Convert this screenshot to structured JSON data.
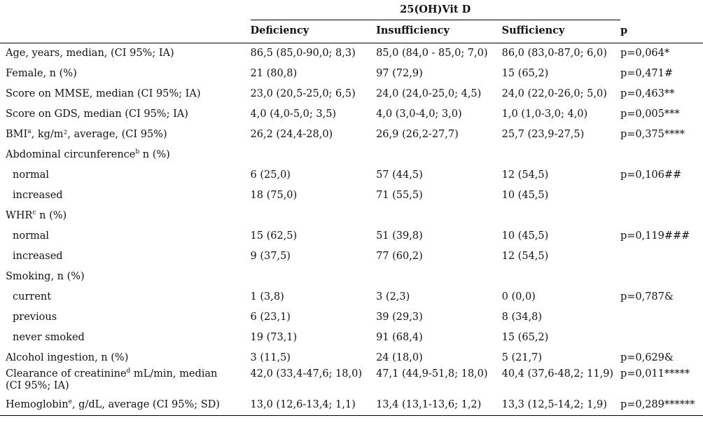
{
  "group_header": "25(OH)Vit D",
  "columns": [
    "Deficiency",
    "Insufficiency",
    "Sufficiency",
    "p"
  ],
  "rows": [
    {
      "label": "Age, years, median, (CI 95%; IA)",
      "sup": "",
      "label_rest": "",
      "cells": [
        "86,5 (85,0-90,0; 8,3)",
        "85,0 (84,0 - 85,0; 7,0)",
        "86,0 (83,0-87,0; 6,0)",
        "p=0,064*"
      ]
    },
    {
      "label": "Female, n (%)",
      "sup": "",
      "label_rest": "",
      "cells": [
        "21 (80,8)",
        "97 (72,9)",
        "15 (65,2)",
        "p=0,471#"
      ]
    },
    {
      "label": "Score on MMSE, median (CI 95%; IA)",
      "sup": "",
      "label_rest": "",
      "cells": [
        "23,0 (20,5-25,0; 6,5)",
        "24,0 (24,0-25,0; 4,5)",
        "24,0 (22,0-26,0; 5,0)",
        "p=0,463**"
      ]
    },
    {
      "label": "Score on GDS, median (CI 95%; IA)",
      "sup": "",
      "label_rest": "",
      "cells": [
        "4,0 (4,0-5,0; 3,5)",
        "4,0 (3,0-4,0; 3,0)",
        "1,0 (1,0-3,0; 4,0)",
        "p=0,005***"
      ]
    },
    {
      "label": "BMI",
      "sup": "a",
      "label_rest": ", kg/m², average, (CI 95%)",
      "cells": [
        "26,2 (24,4-28,0)",
        "26,9 (26,2-27,7)",
        "25,7 (23,9-27,5)",
        "p=0,375****"
      ]
    },
    {
      "label": "Abdominal circunference",
      "sup": "b",
      "label_rest": " n (%)",
      "cells": [
        "",
        "",
        "",
        ""
      ]
    },
    {
      "label": "normal",
      "sup": "",
      "label_rest": "",
      "indent": true,
      "cells": [
        "6 (25,0)",
        "57 (44,5)",
        "12 (54,5)",
        "p=0,106##"
      ]
    },
    {
      "label": "increased",
      "sup": "",
      "label_rest": "",
      "indent": true,
      "cells": [
        "18 (75,0)",
        "71 (55,5)",
        "10 (45,5)",
        ""
      ]
    },
    {
      "label": "WHR",
      "sup": "c",
      "label_rest": " n (%)",
      "cells": [
        "",
        "",
        "",
        ""
      ]
    },
    {
      "label": "normal",
      "sup": "",
      "label_rest": "",
      "indent": true,
      "cells": [
        "15 (62,5)",
        "51 (39,8)",
        "10 (45,5)",
        "p=0,119###"
      ]
    },
    {
      "label": "increased",
      "sup": "",
      "label_rest": "",
      "indent": true,
      "cells": [
        "9 (37,5)",
        "77 (60,2)",
        "12 (54,5)",
        ""
      ]
    },
    {
      "label": "Smoking, n (%)",
      "sup": "",
      "label_rest": "",
      "cells": [
        "",
        "",
        "",
        ""
      ]
    },
    {
      "label": "current",
      "sup": "",
      "label_rest": "",
      "indent": true,
      "cells": [
        "1 (3,8)",
        "3 (2,3)",
        "0 (0,0)",
        "p=0,787&"
      ]
    },
    {
      "label": "previous",
      "sup": "",
      "label_rest": "",
      "indent": true,
      "cells": [
        "6 (23,1)",
        "39 (29,3)",
        "8 (34,8)",
        ""
      ]
    },
    {
      "label": "never smoked",
      "sup": "",
      "label_rest": "",
      "indent": true,
      "cells": [
        "19 (73,1)",
        "91 (68,4)",
        "15 (65,2)",
        ""
      ]
    },
    {
      "label": "Alcohol ingestion, n (%)",
      "sup": "",
      "label_rest": "",
      "cells": [
        "3 (11,5)",
        "24 (18,0)",
        "5 (21,7)",
        "p=0,629&"
      ]
    },
    {
      "label": "Clearance of creatinine",
      "sup": "d",
      "label_rest": " mL/min, median",
      "label_line2": "(CI 95%; IA)",
      "cells": [
        "42,0 (33,4-47,6; 18,0)",
        "47,1 (44,9-51,8; 18,0)",
        "40,4 (37,6-48,2; 11,9)",
        "p=0,011*****"
      ]
    },
    {
      "label": "Hemoglobin",
      "sup": "e",
      "label_rest": ",  g/dL, average (CI 95%; SD)",
      "cells": [
        "13,0 (12,6-13,4; 1,1)",
        "13,4 (13,1-13,6; 1,2)",
        "13,3 (12,5-14,2; 1,9)",
        "p=0,289******"
      ]
    }
  ]
}
